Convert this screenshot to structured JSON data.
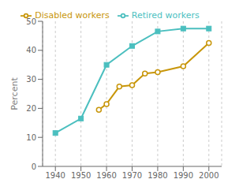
{
  "chart_data": {
    "type": "line",
    "ylabel": "Percent",
    "xlim": [
      1935,
      2005
    ],
    "xticks": [
      1940,
      1950,
      1960,
      1970,
      1980,
      1990,
      2000
    ],
    "ylim": [
      0,
      50
    ],
    "yticks": [
      0,
      10,
      20,
      30,
      40,
      50
    ],
    "grid": "x",
    "legend": "top",
    "series": [
      {
        "name": "Retired workers",
        "color": "#4bbfbf",
        "marker": "square",
        "x": [
          1940,
          1950,
          1960,
          1970,
          1980,
          1990,
          2000
        ],
        "values": [
          11.5,
          16.5,
          35.0,
          41.5,
          46.5,
          47.5,
          47.5
        ]
      },
      {
        "name": "Disabled workers",
        "color": "#c8960a",
        "marker": "circle",
        "x": [
          1957,
          1960,
          1965,
          1970,
          1975,
          1980,
          1990,
          2000
        ],
        "values": [
          19.5,
          21.5,
          27.5,
          28.0,
          32.0,
          32.5,
          34.5,
          42.5
        ]
      }
    ]
  }
}
